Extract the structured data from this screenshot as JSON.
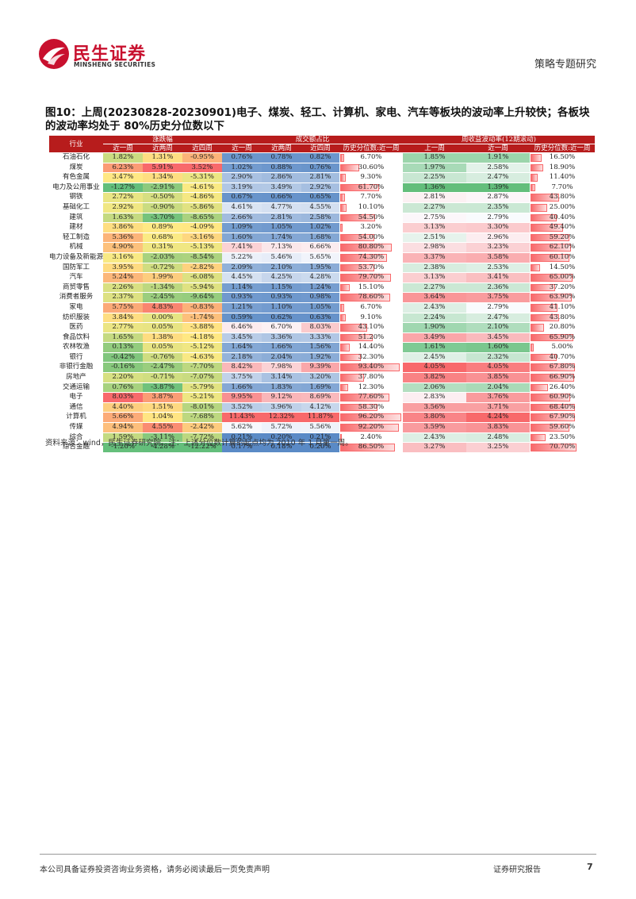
{
  "header": {
    "logo_cn": "民生证券",
    "logo_en": "MINSHENG SECURITIES",
    "section": "策略专题研究"
  },
  "figure": {
    "title": "图10：上周(20230828-20230901)电子、煤炭、轻工、计算机、家电、汽车等板块的波动率上升较快；各板块的波动率均处于 80%历史分位数以下",
    "table": {
      "group_headers": [
        "行业",
        "涨跌幅",
        "成交额占比",
        "周收益波动率(12期滚动)"
      ],
      "columns": [
        "近一周",
        "近两周",
        "近四周",
        "近一周",
        "近两周",
        "近四周",
        "历史分位数:近一周",
        "上一周",
        "近一周",
        "历史分位数:近一周"
      ],
      "rows": [
        [
          "石油石化",
          "1.82%",
          "1.31%",
          "-0.95%",
          "0.76%",
          "0.78%",
          "0.82%",
          "6.70%",
          "1.85%",
          "1.91%",
          "16.50%"
        ],
        [
          "煤炭",
          "6.23%",
          "5.91%",
          "3.52%",
          "1.02%",
          "0.88%",
          "0.76%",
          "30.60%",
          "1.97%",
          "2.58%",
          "18.90%"
        ],
        [
          "有色金属",
          "3.47%",
          "1.34%",
          "-5.31%",
          "2.90%",
          "2.86%",
          "2.81%",
          "9.30%",
          "2.25%",
          "2.47%",
          "11.40%"
        ],
        [
          "电力及公用事业",
          "-1.27%",
          "-2.91%",
          "-4.61%",
          "3.19%",
          "3.49%",
          "2.92%",
          "61.70%",
          "1.36%",
          "1.39%",
          "7.70%"
        ],
        [
          "钢铁",
          "2.72%",
          "-0.50%",
          "-4.86%",
          "0.67%",
          "0.66%",
          "0.65%",
          "7.70%",
          "2.81%",
          "2.87%",
          "43.80%"
        ],
        [
          "基础化工",
          "2.92%",
          "-0.90%",
          "-5.86%",
          "4.61%",
          "4.77%",
          "4.55%",
          "10.10%",
          "2.27%",
          "2.35%",
          "25.00%"
        ],
        [
          "建筑",
          "1.63%",
          "-3.70%",
          "-8.65%",
          "2.66%",
          "2.81%",
          "2.58%",
          "54.50%",
          "2.75%",
          "2.79%",
          "40.40%"
        ],
        [
          "建材",
          "3.86%",
          "0.89%",
          "-4.09%",
          "1.09%",
          "1.05%",
          "1.02%",
          "3.20%",
          "3.13%",
          "3.30%",
          "49.40%"
        ],
        [
          "轻工制造",
          "5.36%",
          "0.68%",
          "-3.16%",
          "1.60%",
          "1.74%",
          "1.68%",
          "54.00%",
          "2.51%",
          "2.96%",
          "59.20%"
        ],
        [
          "机械",
          "4.90%",
          "0.31%",
          "-5.13%",
          "7.41%",
          "7.13%",
          "6.66%",
          "80.80%",
          "2.98%",
          "3.23%",
          "62.10%"
        ],
        [
          "电力设备及新能源",
          "3.16%",
          "-2.03%",
          "-8.54%",
          "5.22%",
          "5.46%",
          "5.65%",
          "74.30%",
          "3.37%",
          "3.58%",
          "60.10%"
        ],
        [
          "国防军工",
          "3.95%",
          "-0.72%",
          "-2.82%",
          "2.09%",
          "2.10%",
          "1.95%",
          "53.70%",
          "2.38%",
          "2.53%",
          "14.50%"
        ],
        [
          "汽车",
          "5.24%",
          "1.99%",
          "-6.08%",
          "4.45%",
          "4.25%",
          "4.28%",
          "79.70%",
          "3.13%",
          "3.41%",
          "65.00%"
        ],
        [
          "商贸零售",
          "2.26%",
          "-1.34%",
          "-5.94%",
          "1.14%",
          "1.15%",
          "1.24%",
          "15.10%",
          "2.27%",
          "2.36%",
          "37.20%"
        ],
        [
          "消费者服务",
          "2.37%",
          "-2.45%",
          "-9.64%",
          "0.93%",
          "0.93%",
          "0.98%",
          "78.60%",
          "3.64%",
          "3.75%",
          "63.90%"
        ],
        [
          "家电",
          "5.75%",
          "4.83%",
          "-0.83%",
          "1.21%",
          "1.10%",
          "1.05%",
          "6.70%",
          "2.43%",
          "2.79%",
          "41.10%"
        ],
        [
          "纺织服装",
          "3.84%",
          "0.00%",
          "-1.74%",
          "0.59%",
          "0.62%",
          "0.63%",
          "9.10%",
          "2.24%",
          "2.47%",
          "43.80%"
        ],
        [
          "医药",
          "2.77%",
          "0.05%",
          "-3.88%",
          "6.46%",
          "6.70%",
          "8.03%",
          "43.10%",
          "1.90%",
          "2.10%",
          "20.80%"
        ],
        [
          "食品饮料",
          "1.65%",
          "1.38%",
          "-4.18%",
          "3.45%",
          "3.36%",
          "3.33%",
          "51.20%",
          "3.49%",
          "3.45%",
          "65.90%"
        ],
        [
          "农林牧渔",
          "0.13%",
          "0.05%",
          "-5.12%",
          "1.64%",
          "1.66%",
          "1.56%",
          "14.40%",
          "1.61%",
          "1.60%",
          "5.00%"
        ],
        [
          "银行",
          "-0.42%",
          "-0.76%",
          "-4.63%",
          "2.18%",
          "2.04%",
          "1.92%",
          "32.30%",
          "2.45%",
          "2.32%",
          "40.70%"
        ],
        [
          "非银行金融",
          "-0.16%",
          "-2.47%",
          "-7.70%",
          "8.42%",
          "7.98%",
          "9.39%",
          "93.40%",
          "4.05%",
          "4.05%",
          "67.80%"
        ],
        [
          "房地产",
          "2.20%",
          "-0.71%",
          "-7.07%",
          "3.75%",
          "3.14%",
          "3.20%",
          "37.80%",
          "3.82%",
          "3.85%",
          "66.90%"
        ],
        [
          "交通运输",
          "0.76%",
          "-3.87%",
          "-5.79%",
          "1.66%",
          "1.83%",
          "1.69%",
          "12.30%",
          "2.06%",
          "2.04%",
          "26.40%"
        ],
        [
          "电子",
          "8.03%",
          "3.87%",
          "-5.21%",
          "9.95%",
          "9.12%",
          "8.69%",
          "77.60%",
          "2.83%",
          "3.76%",
          "60.90%"
        ],
        [
          "通信",
          "4.40%",
          "1.51%",
          "-8.01%",
          "3.52%",
          "3.96%",
          "4.12%",
          "58.30%",
          "3.56%",
          "3.71%",
          "68.40%"
        ],
        [
          "计算机",
          "5.66%",
          "1.04%",
          "-7.68%",
          "11.43%",
          "12.32%",
          "11.87%",
          "96.20%",
          "3.80%",
          "4.24%",
          "67.90%"
        ],
        [
          "传媒",
          "4.94%",
          "4.55%",
          "-2.42%",
          "5.62%",
          "5.72%",
          "5.56%",
          "92.20%",
          "3.59%",
          "3.83%",
          "59.60%"
        ],
        [
          "综合",
          "1.59%",
          "-3.11%",
          "-7.72%",
          "0.21%",
          "0.20%",
          "0.21%",
          "2.40%",
          "2.43%",
          "2.48%",
          "23.50%"
        ],
        [
          "综合金融",
          "-1.20%",
          "-4.28%",
          "-12.22%",
          "0.17%",
          "0.18%",
          "0.20%",
          "86.50%",
          "3.27%",
          "3.25%",
          "70.70%"
        ]
      ]
    },
    "source": "资料来源：wind，民生证券研究院。注：上述分位数计算的起点均为 2010 年 1 月第一周。"
  },
  "footer": {
    "disclaimer": "本公司具备证券投资咨询业务资格，请务必阅读最后一页免责声明",
    "label": "证券研究报告",
    "page": "7"
  }
}
